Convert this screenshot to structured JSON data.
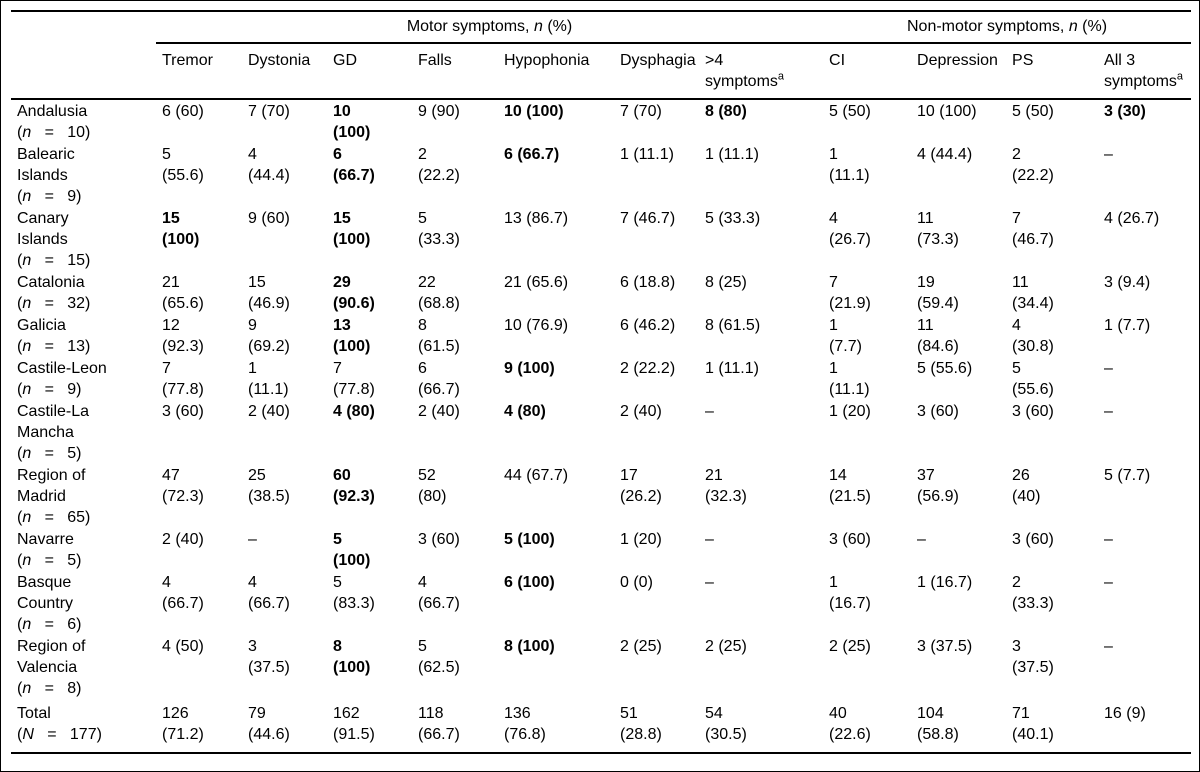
{
  "colors": {
    "background": "#ffffff",
    "text": "#000000",
    "rule": "#000000"
  },
  "table": {
    "groups": {
      "motor": {
        "prefix": "Motor symptoms,",
        "symbol": "n",
        "suffix": "(%)"
      },
      "nonmotor": {
        "prefix": "Non-motor symptoms,",
        "symbol": "n",
        "suffix": "(%)"
      }
    },
    "columns": [
      {
        "label": "Tremor"
      },
      {
        "label": "Dystonia"
      },
      {
        "label": "GD"
      },
      {
        "label": "Falls"
      },
      {
        "label": "Hypophonia"
      },
      {
        "label": "Dysphagia"
      },
      {
        "label": ">4\nsymptoms",
        "sup": "a"
      },
      {
        "label": "CI"
      },
      {
        "label": "Depression"
      },
      {
        "label": "PS"
      },
      {
        "label": "All 3\nsymptoms",
        "sup": "a"
      }
    ],
    "label_format": {
      "open": "(",
      "equals": "=",
      "close": ")",
      "gap": "   "
    },
    "rows": [
      {
        "region": [
          "Andalusia"
        ],
        "n_symbol": "n",
        "n_value": "10",
        "cells": [
          "6 (60)",
          "7 (70)",
          {
            "t": "10\n(100)",
            "b": true
          },
          "9 (90)",
          {
            "t": "10 (100)",
            "b": true
          },
          "7 (70)",
          {
            "t": "8 (80)",
            "b": true
          },
          "5 (50)",
          "10 (100)",
          "5 (50)",
          {
            "t": "3 (30)",
            "b": true
          }
        ]
      },
      {
        "region": [
          "Balearic",
          "Islands"
        ],
        "n_symbol": "n",
        "n_value": "9",
        "cells": [
          "5\n(55.6)",
          "4\n(44.4)",
          {
            "t": "6\n(66.7)",
            "b": true
          },
          "2\n(22.2)",
          {
            "t": "6 (66.7)",
            "b": true
          },
          "1 (11.1)",
          "1 (11.1)",
          "1\n(11.1)",
          "4 (44.4)",
          "2\n(22.2)",
          "–"
        ]
      },
      {
        "region": [
          "Canary",
          "Islands"
        ],
        "n_symbol": "n",
        "n_value": "15",
        "cells": [
          {
            "t": "15\n(100)",
            "b": true
          },
          "9 (60)",
          {
            "t": "15\n(100)",
            "b": true
          },
          "5\n(33.3)",
          "13 (86.7)",
          "7 (46.7)",
          "5 (33.3)",
          "4\n(26.7)",
          "11\n(73.3)",
          "7\n(46.7)",
          "4 (26.7)"
        ]
      },
      {
        "region": [
          "Catalonia"
        ],
        "n_symbol": "n",
        "n_value": "32",
        "cells": [
          "21\n(65.6)",
          "15\n(46.9)",
          {
            "t": "29\n(90.6)",
            "b": true
          },
          "22\n(68.8)",
          "21 (65.6)",
          "6 (18.8)",
          "8 (25)",
          "7\n(21.9)",
          "19\n(59.4)",
          "11\n(34.4)",
          "3 (9.4)"
        ]
      },
      {
        "region": [
          "Galicia"
        ],
        "n_symbol": "n",
        "n_value": "13",
        "cells": [
          "12\n(92.3)",
          "9\n(69.2)",
          {
            "t": "13\n(100)",
            "b": true
          },
          "8\n(61.5)",
          "10 (76.9)",
          "6 (46.2)",
          "8 (61.5)",
          "1\n(7.7)",
          "11\n(84.6)",
          "4\n(30.8)",
          "1 (7.7)"
        ]
      },
      {
        "region": [
          "Castile-Leon"
        ],
        "n_symbol": "n",
        "n_value": "9",
        "cells": [
          "7\n(77.8)",
          "1\n(11.1)",
          "7\n(77.8)",
          "6\n(66.7)",
          {
            "t": "9 (100)",
            "b": true
          },
          "2 (22.2)",
          "1 (11.1)",
          "1\n(11.1)",
          "5 (55.6)",
          "5\n(55.6)",
          "–"
        ]
      },
      {
        "region": [
          "Castile-La",
          "Mancha"
        ],
        "n_symbol": "n",
        "n_value": "5",
        "cells": [
          "3 (60)",
          "2 (40)",
          {
            "t": "4 (80)",
            "b": true
          },
          "2 (40)",
          {
            "t": "4 (80)",
            "b": true
          },
          "2 (40)",
          "–",
          "1 (20)",
          "3 (60)",
          "3 (60)",
          "–"
        ]
      },
      {
        "region": [
          "Region of",
          "Madrid"
        ],
        "n_symbol": "n",
        "n_value": "65",
        "cells": [
          "47\n(72.3)",
          "25\n(38.5)",
          {
            "t": "60\n(92.3)",
            "b": true
          },
          "52\n(80)",
          "44 (67.7)",
          "17\n(26.2)",
          "21\n(32.3)",
          "14\n(21.5)",
          "37\n(56.9)",
          "26\n(40)",
          "5 (7.7)"
        ]
      },
      {
        "region": [
          "Navarre"
        ],
        "n_symbol": "n",
        "n_value": "5",
        "cells": [
          "2 (40)",
          "–",
          {
            "t": "5\n(100)",
            "b": true
          },
          "3 (60)",
          {
            "t": "5 (100)",
            "b": true
          },
          "1 (20)",
          "–",
          "3 (60)",
          "–",
          "3 (60)",
          "–"
        ]
      },
      {
        "region": [
          "Basque",
          "Country"
        ],
        "n_symbol": "n",
        "n_value": "6",
        "cells": [
          "4\n(66.7)",
          "4\n(66.7)",
          "5\n(83.3)",
          "4\n(66.7)",
          {
            "t": "6 (100)",
            "b": true
          },
          "0 (0)",
          "–",
          "1\n(16.7)",
          "1 (16.7)",
          "2\n(33.3)",
          "–"
        ]
      },
      {
        "region": [
          "Region of",
          "Valencia"
        ],
        "n_symbol": "n",
        "n_value": "8",
        "cells": [
          "4 (50)",
          "3\n(37.5)",
          {
            "t": "8\n(100)",
            "b": true
          },
          "5\n(62.5)",
          {
            "t": "8 (100)",
            "b": true
          },
          "2 (25)",
          "2 (25)",
          "2 (25)",
          "3 (37.5)",
          "3\n(37.5)",
          "–"
        ]
      },
      {
        "region": [
          "Total"
        ],
        "n_symbol": "N",
        "n_value": "177",
        "total": true,
        "cells": [
          "126\n(71.2)",
          "79\n(44.6)",
          "162\n(91.5)",
          "118\n(66.7)",
          "136\n(76.8)",
          "51\n(28.8)",
          "54\n(30.5)",
          "40\n(22.6)",
          "104\n(58.8)",
          "71\n(40.1)",
          "16 (9)"
        ]
      }
    ]
  }
}
